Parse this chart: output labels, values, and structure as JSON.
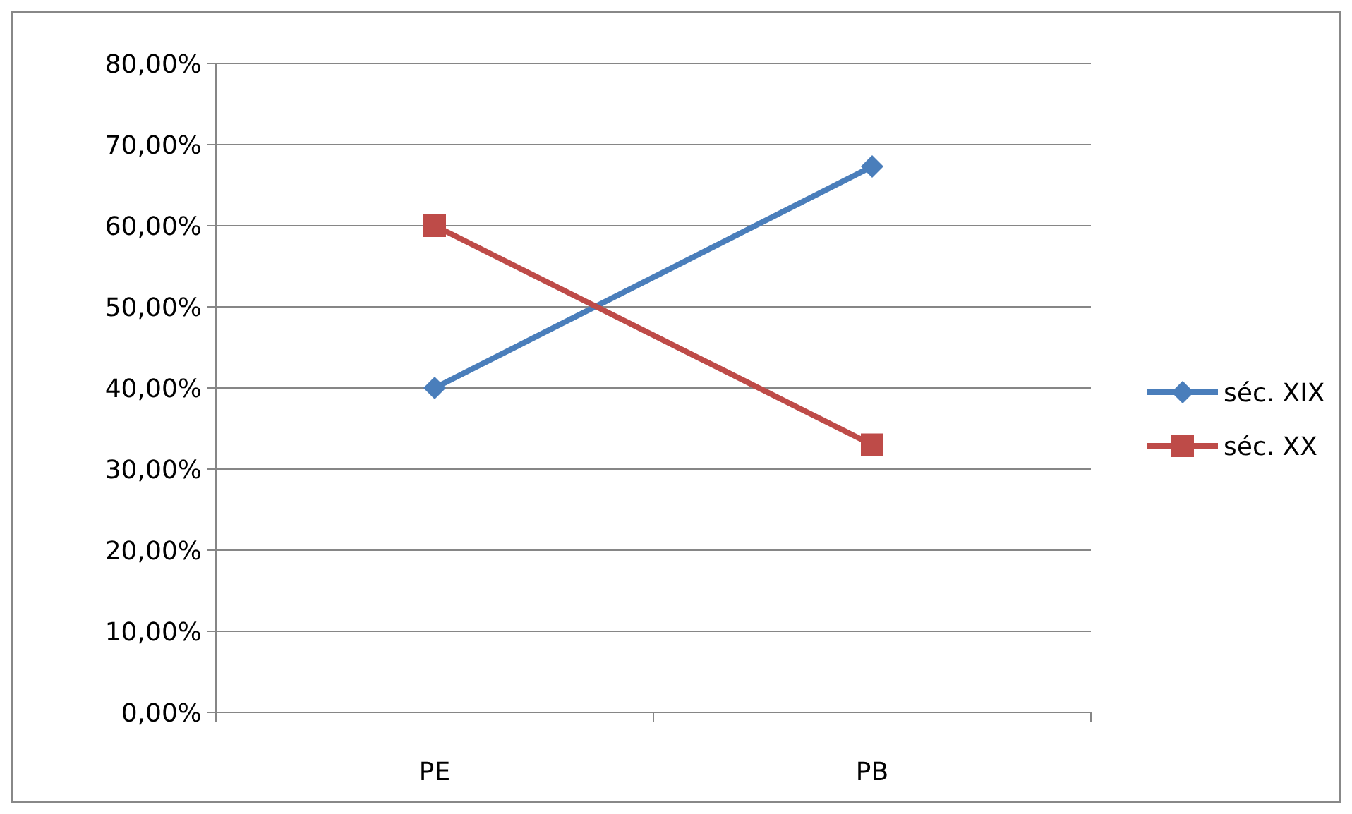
{
  "chart_data": {
    "type": "line",
    "categories": [
      "PE",
      "PB"
    ],
    "series": [
      {
        "name": "séc. XIX",
        "color": "#4a7ebb",
        "values": [
          40,
          67.3
        ],
        "marker": "diamond"
      },
      {
        "name": "séc. XX",
        "color": "#be4b48",
        "values": [
          60,
          33
        ],
        "marker": "square"
      }
    ],
    "ylim": [
      0,
      80
    ],
    "yticks": [
      {
        "value": 0,
        "label": "0,00%"
      },
      {
        "value": 10,
        "label": "10,00%"
      },
      {
        "value": 20,
        "label": "20,00%"
      },
      {
        "value": 30,
        "label": "30,00%"
      },
      {
        "value": 40,
        "label": "40,00%"
      },
      {
        "value": 50,
        "label": "50,00%"
      },
      {
        "value": 60,
        "label": "60,00%"
      },
      {
        "value": 70,
        "label": "70,00%"
      },
      {
        "value": 80,
        "label": "80,00%"
      }
    ],
    "grid": "y",
    "legend": "right",
    "line_style": "solid"
  }
}
